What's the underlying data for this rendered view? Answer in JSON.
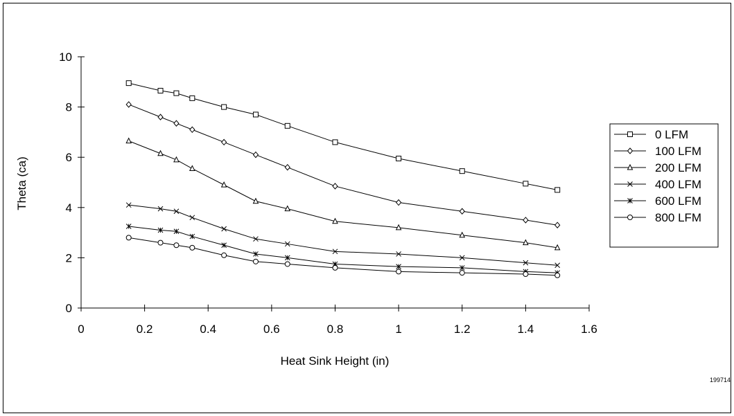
{
  "chart_data": {
    "type": "line",
    "title": "",
    "xlabel": "Heat Sink Height (in)",
    "ylabel": "Theta (ca)",
    "xlim": [
      0,
      1.6
    ],
    "ylim": [
      0,
      10
    ],
    "xticks": [
      0,
      0.2,
      0.4,
      0.6,
      0.8,
      1,
      1.2,
      1.4,
      1.6
    ],
    "xtick_labels": [
      "0",
      "0.2",
      "0.4",
      "0.6",
      "0.8",
      "1",
      "1.2",
      "1.4",
      "1.6"
    ],
    "yticks": [
      0,
      2,
      4,
      6,
      8,
      10
    ],
    "ytick_labels": [
      "0",
      "2",
      "4",
      "6",
      "8",
      "10"
    ],
    "grid": false,
    "legend_position": "right",
    "figure_number": "199714",
    "x": [
      0.15,
      0.25,
      0.3,
      0.35,
      0.45,
      0.55,
      0.65,
      0.8,
      1.0,
      1.2,
      1.4,
      1.5
    ],
    "series": [
      {
        "name": "0 LFM",
        "marker": "square",
        "values": [
          8.95,
          8.65,
          8.55,
          8.35,
          8.0,
          7.7,
          7.25,
          6.6,
          5.95,
          5.45,
          4.95,
          4.7
        ]
      },
      {
        "name": "100 LFM",
        "marker": "diamond",
        "values": [
          8.1,
          7.6,
          7.35,
          7.1,
          6.6,
          6.1,
          5.6,
          4.85,
          4.2,
          3.85,
          3.5,
          3.3
        ]
      },
      {
        "name": "200 LFM",
        "marker": "triangle",
        "values": [
          6.65,
          6.15,
          5.9,
          5.55,
          4.9,
          4.25,
          3.95,
          3.45,
          3.2,
          2.9,
          2.6,
          2.4
        ]
      },
      {
        "name": "400 LFM",
        "marker": "x",
        "values": [
          4.1,
          3.95,
          3.85,
          3.6,
          3.15,
          2.75,
          2.55,
          2.25,
          2.15,
          2.0,
          1.8,
          1.7
        ]
      },
      {
        "name": "600 LFM",
        "marker": "star",
        "values": [
          3.25,
          3.1,
          3.05,
          2.85,
          2.5,
          2.15,
          2.0,
          1.75,
          1.65,
          1.6,
          1.45,
          1.4
        ]
      },
      {
        "name": "800 LFM",
        "marker": "circle",
        "values": [
          2.8,
          2.6,
          2.5,
          2.4,
          2.1,
          1.85,
          1.75,
          1.6,
          1.45,
          1.4,
          1.35,
          1.3
        ]
      }
    ]
  }
}
